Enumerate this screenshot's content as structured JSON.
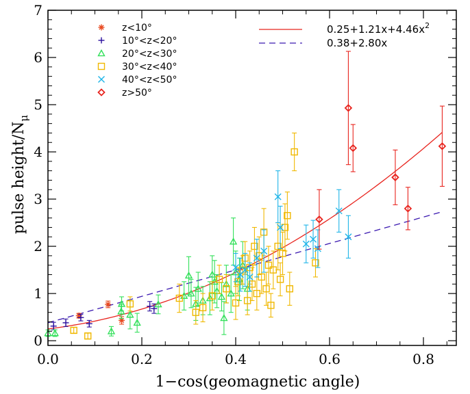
{
  "chart_data": {
    "type": "scatter",
    "xlabel": "1−cos(geomagnetic angle)",
    "ylabel": "pulse height/N",
    "ylabel_sub": "μ",
    "xlim": [
      0,
      0.87
    ],
    "ylim": [
      -0.1,
      7
    ],
    "xticks": [
      {
        "v": 0.0,
        "label": "0.0"
      },
      {
        "v": 0.2,
        "label": "0.2"
      },
      {
        "v": 0.4,
        "label": "0.4"
      },
      {
        "v": 0.6,
        "label": "0.6"
      },
      {
        "v": 0.8,
        "label": "0.8"
      }
    ],
    "yticks": [
      {
        "v": 0,
        "label": "0"
      },
      {
        "v": 1,
        "label": "1"
      },
      {
        "v": 2,
        "label": "2"
      },
      {
        "v": 3,
        "label": "3"
      },
      {
        "v": 4,
        "label": "4"
      },
      {
        "v": 5,
        "label": "5"
      },
      {
        "v": 6,
        "label": "6"
      },
      {
        "v": 7,
        "label": "7"
      }
    ],
    "series": [
      {
        "name": "z<10°",
        "marker": "asterisk",
        "color": "#e8481e",
        "points": [
          [
            0.066,
            0.53,
            0.05
          ],
          [
            0.128,
            0.77,
            0.07
          ],
          [
            0.157,
            0.43,
            0.08
          ]
        ]
      },
      {
        "name": "10°<z<20°",
        "marker": "plus",
        "color": "#2a0f9e",
        "points": [
          [
            0.012,
            0.31,
            0.08
          ],
          [
            0.038,
            0.38,
            0.08
          ],
          [
            0.07,
            0.49,
            0.07
          ],
          [
            0.088,
            0.36,
            0.07
          ],
          [
            0.217,
            0.73,
            0.1
          ],
          [
            0.226,
            0.68,
            0.1
          ]
        ]
      },
      {
        "name": "20°<z<30°",
        "marker": "triangle",
        "color": "#32e05a",
        "points": [
          [
            0.0,
            0.16,
            0.07
          ],
          [
            0.015,
            0.16,
            0.07
          ],
          [
            0.135,
            0.2,
            0.1
          ],
          [
            0.156,
            0.62,
            0.15
          ],
          [
            0.157,
            0.78,
            0.15
          ],
          [
            0.175,
            0.55,
            0.3
          ],
          [
            0.19,
            0.38,
            0.2
          ],
          [
            0.235,
            0.77,
            0.2
          ],
          [
            0.29,
            0.95,
            0.3
          ],
          [
            0.3,
            1.38,
            0.4
          ],
          [
            0.305,
            1.0,
            0.3
          ],
          [
            0.315,
            0.78,
            0.35
          ],
          [
            0.32,
            1.1,
            0.35
          ],
          [
            0.33,
            0.85,
            0.3
          ],
          [
            0.345,
            0.9,
            0.35
          ],
          [
            0.35,
            1.4,
            0.4
          ],
          [
            0.355,
            1.25,
            0.45
          ],
          [
            0.36,
            1.05,
            0.35
          ],
          [
            0.37,
            0.93,
            0.3
          ],
          [
            0.375,
            0.48,
            0.35
          ],
          [
            0.38,
            1.2,
            0.4
          ],
          [
            0.39,
            1.0,
            0.4
          ],
          [
            0.395,
            2.1,
            0.5
          ],
          [
            0.4,
            1.45,
            0.45
          ],
          [
            0.408,
            1.3,
            0.45
          ],
          [
            0.415,
            1.6,
            0.5
          ],
          [
            0.425,
            1.1,
            0.45
          ]
        ]
      },
      {
        "name": "30°<z<40°",
        "marker": "square",
        "color": "#f0b800",
        "points": [
          [
            0.055,
            0.22,
            0.06
          ],
          [
            0.085,
            0.1,
            0.06
          ],
          [
            0.175,
            0.78,
            0.15
          ],
          [
            0.28,
            0.9,
            0.3
          ],
          [
            0.315,
            0.6,
            0.25
          ],
          [
            0.33,
            0.7,
            0.3
          ],
          [
            0.35,
            0.95,
            0.3
          ],
          [
            0.365,
            1.3,
            0.3
          ],
          [
            0.38,
            1.1,
            0.3
          ],
          [
            0.4,
            0.8,
            0.35
          ],
          [
            0.405,
            1.25,
            0.3
          ],
          [
            0.415,
            1.5,
            0.3
          ],
          [
            0.42,
            1.75,
            0.35
          ],
          [
            0.425,
            0.85,
            0.3
          ],
          [
            0.43,
            1.55,
            0.35
          ],
          [
            0.435,
            1.2,
            0.35
          ],
          [
            0.44,
            2.0,
            0.4
          ],
          [
            0.445,
            1.0,
            0.35
          ],
          [
            0.45,
            1.8,
            0.4
          ],
          [
            0.455,
            1.35,
            0.35
          ],
          [
            0.46,
            2.3,
            0.5
          ],
          [
            0.465,
            1.1,
            0.35
          ],
          [
            0.47,
            1.6,
            0.4
          ],
          [
            0.475,
            0.75,
            0.25
          ],
          [
            0.48,
            1.5,
            0.4
          ],
          [
            0.49,
            2.0,
            0.5
          ],
          [
            0.495,
            1.3,
            0.35
          ],
          [
            0.5,
            1.85,
            0.45
          ],
          [
            0.505,
            2.4,
            0.5
          ],
          [
            0.51,
            2.65,
            0.5
          ],
          [
            0.515,
            1.1,
            0.35
          ],
          [
            0.525,
            4.0,
            0.4
          ],
          [
            0.57,
            1.65,
            0.3
          ]
        ]
      },
      {
        "name": "40°<z<50°",
        "marker": "cross",
        "color": "#1fb5e8",
        "points": [
          [
            0.4,
            1.55,
            0.3
          ],
          [
            0.41,
            1.4,
            0.35
          ],
          [
            0.42,
            1.5,
            0.35
          ],
          [
            0.43,
            1.35,
            0.3
          ],
          [
            0.445,
            1.75,
            0.4
          ],
          [
            0.46,
            1.9,
            0.45
          ],
          [
            0.49,
            3.05,
            0.55
          ],
          [
            0.495,
            2.4,
            0.45
          ],
          [
            0.55,
            2.05,
            0.4
          ],
          [
            0.565,
            2.15,
            0.4
          ],
          [
            0.575,
            1.95,
            0.4
          ],
          [
            0.62,
            2.75,
            0.45
          ],
          [
            0.64,
            2.2,
            0.45
          ]
        ]
      },
      {
        "name": "z>50°",
        "marker": "diamond",
        "color": "#e8241e",
        "points": [
          [
            0.578,
            2.57,
            0.63
          ],
          [
            0.64,
            4.93,
            1.2
          ],
          [
            0.65,
            4.08,
            0.5
          ],
          [
            0.74,
            3.46,
            0.58
          ],
          [
            0.767,
            2.8,
            0.45
          ],
          [
            0.84,
            4.12,
            0.85
          ]
        ]
      }
    ],
    "fits": [
      {
        "label": "0.25+1.21x+4.46x",
        "label_sup": "2",
        "color": "#e8241e",
        "style": "solid",
        "coef": [
          0.25,
          1.21,
          4.46
        ],
        "domain": [
          0,
          0.84
        ]
      },
      {
        "label": "0.38+2.80x",
        "label_sup": "",
        "color": "#3a18b0",
        "style": "dashed",
        "coef": [
          0.38,
          2.8,
          0
        ],
        "domain": [
          0,
          0.84
        ]
      }
    ],
    "legend_placement": "top-left",
    "fit_legend_placement": "top-right",
    "grid": false
  }
}
